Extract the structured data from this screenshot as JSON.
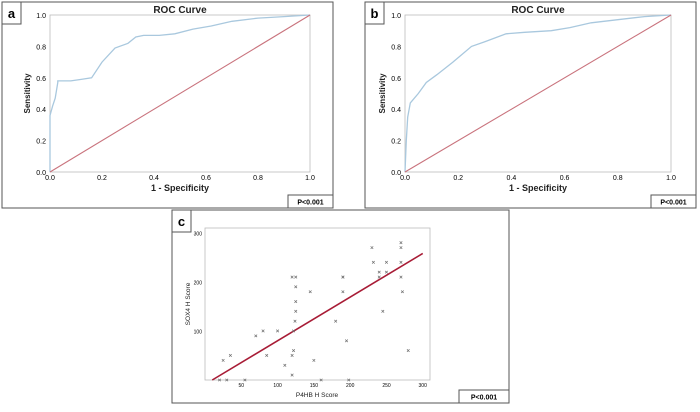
{
  "colors": {
    "roc_curve": "#a9c8de",
    "reference_line": "#c9737d",
    "scatter_points": "#6e6e6e",
    "fit_line": "#a81c36",
    "frame": "#555555",
    "pvalue_box": "#555555"
  },
  "chart_data": [
    {
      "panel_label": "a",
      "type": "line",
      "title": "ROC Curve",
      "xlabel": "1 - Specificity",
      "ylabel": "Sensitivity",
      "xlim": [
        0,
        1
      ],
      "ylim": [
        0,
        1
      ],
      "xticks": [
        "0.0",
        "0.2",
        "0.4",
        "0.6",
        "0.8",
        "1.0"
      ],
      "yticks": [
        "0.0",
        "0.2",
        "0.4",
        "0.6",
        "0.8",
        "1.0"
      ],
      "pvalue": "P<0.001",
      "series": [
        {
          "name": "ROC",
          "x": [
            0,
            0,
            0.01,
            0.02,
            0.03,
            0.03,
            0.08,
            0.12,
            0.16,
            0.2,
            0.25,
            0.3,
            0.33,
            0.36,
            0.42,
            0.48,
            0.55,
            0.62,
            0.7,
            0.8,
            0.9,
            1.0
          ],
          "y": [
            0,
            0.36,
            0.42,
            0.47,
            0.57,
            0.58,
            0.58,
            0.59,
            0.6,
            0.7,
            0.79,
            0.82,
            0.86,
            0.87,
            0.87,
            0.88,
            0.91,
            0.93,
            0.96,
            0.98,
            0.99,
            1.0
          ]
        },
        {
          "name": "Reference",
          "x": [
            0,
            1
          ],
          "y": [
            0,
            1
          ]
        }
      ]
    },
    {
      "panel_label": "b",
      "type": "line",
      "title": "ROC Curve",
      "xlabel": "1 - Specificity",
      "ylabel": "Sensitivity",
      "xlim": [
        0,
        1
      ],
      "ylim": [
        0,
        1
      ],
      "xticks": [
        "0.0",
        "0.2",
        "0.4",
        "0.6",
        "0.8",
        "1.0"
      ],
      "yticks": [
        "0.0",
        "0.2",
        "0.4",
        "0.6",
        "0.8",
        "1.0"
      ],
      "pvalue": "P<0.001",
      "series": [
        {
          "name": "ROC",
          "x": [
            0,
            0.005,
            0.01,
            0.02,
            0.05,
            0.08,
            0.12,
            0.18,
            0.25,
            0.3,
            0.38,
            0.45,
            0.55,
            0.62,
            0.7,
            0.8,
            0.9,
            1.0
          ],
          "y": [
            0,
            0.2,
            0.35,
            0.44,
            0.5,
            0.57,
            0.62,
            0.7,
            0.8,
            0.83,
            0.88,
            0.89,
            0.9,
            0.92,
            0.95,
            0.97,
            0.99,
            1.0
          ]
        },
        {
          "name": "Reference",
          "x": [
            0,
            1
          ],
          "y": [
            0,
            1
          ]
        }
      ]
    },
    {
      "panel_label": "c",
      "type": "scatter",
      "title": "",
      "xlabel": "P4HB H Score",
      "ylabel": "SOX4 H Score",
      "xlim": [
        0,
        310
      ],
      "ylim": [
        0,
        310
      ],
      "xticks": [
        "50",
        "100",
        "150",
        "200",
        "250",
        "300"
      ],
      "yticks": [
        "100",
        "200",
        "300"
      ],
      "pvalue": "P<0.001",
      "series": [
        {
          "name": "Samples",
          "x": [
            20,
            25,
            30,
            35,
            55,
            70,
            80,
            85,
            100,
            110,
            120,
            120,
            120,
            122,
            122,
            124,
            125,
            125,
            125,
            125,
            145,
            150,
            160,
            180,
            190,
            190,
            190,
            195,
            198,
            230,
            232,
            240,
            240,
            245,
            250,
            250,
            270,
            270,
            270,
            270,
            272,
            280
          ],
          "y": [
            0,
            40,
            0,
            50,
            0,
            90,
            100,
            50,
            100,
            30,
            210,
            10,
            50,
            60,
            100,
            120,
            210,
            190,
            160,
            140,
            180,
            40,
            0,
            120,
            210,
            180,
            210,
            80,
            0,
            270,
            240,
            220,
            210,
            140,
            220,
            240,
            280,
            270,
            240,
            210,
            180,
            60
          ]
        }
      ],
      "fit_line": {
        "x": [
          10,
          300
        ],
        "y": [
          0,
          258
        ]
      }
    }
  ]
}
